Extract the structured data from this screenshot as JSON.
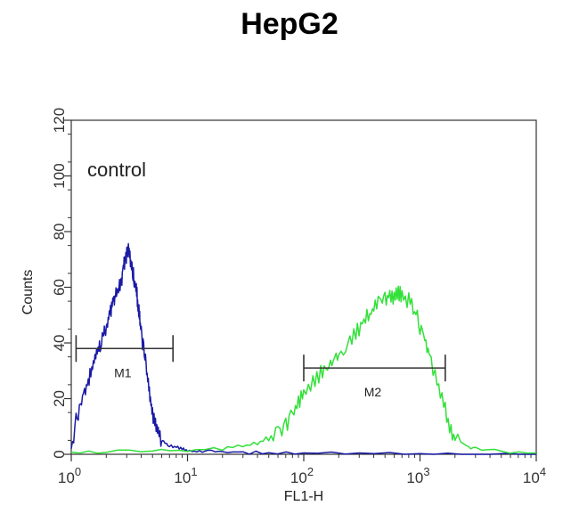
{
  "chart_data": {
    "type": "line",
    "title": "HepG2",
    "xlabel": "FL1-H",
    "ylabel": "Counts",
    "x_scale": "log",
    "xlim": [
      1,
      10000
    ],
    "ylim": [
      0,
      120
    ],
    "x_ticks": [
      {
        "value": 1,
        "base": "10",
        "exp": "0"
      },
      {
        "value": 10,
        "base": "10",
        "exp": "1"
      },
      {
        "value": 100,
        "base": "10",
        "exp": "2"
      },
      {
        "value": 1000,
        "base": "10",
        "exp": "3"
      },
      {
        "value": 10000,
        "base": "10",
        "exp": "4"
      }
    ],
    "y_ticks": [
      0,
      20,
      40,
      60,
      80,
      100,
      120
    ],
    "annotation": "control",
    "markers": [
      {
        "label": "M1",
        "x_start": 1.1,
        "x_end": 7.5,
        "y": 38
      },
      {
        "label": "M2",
        "x_start": 100,
        "x_end": 1650,
        "y": 31
      }
    ],
    "series": [
      {
        "color": "#1a1aa6",
        "x": [
          1.0,
          1.1,
          1.2,
          1.3,
          1.4,
          1.5,
          1.6,
          1.7,
          1.8,
          1.9,
          2.0,
          2.1,
          2.2,
          2.3,
          2.4,
          2.5,
          2.6,
          2.7,
          2.8,
          2.9,
          3.0,
          3.1,
          3.2,
          3.3,
          3.4,
          3.5,
          3.6,
          3.7,
          3.8,
          3.9,
          4.0,
          4.2,
          4.4,
          4.6,
          4.8,
          5.0,
          5.3,
          5.6,
          6.0,
          6.5,
          7.0,
          8.0,
          9.0,
          10.0,
          12,
          15,
          20,
          30,
          50,
          100,
          300,
          1000,
          3000,
          10000
        ],
        "y": [
          2,
          12,
          18,
          22,
          26,
          30,
          34,
          38,
          40,
          44,
          46,
          49,
          52,
          55,
          57,
          58,
          60,
          62,
          66,
          70,
          72,
          74,
          71,
          68,
          65,
          62,
          60,
          56,
          52,
          48,
          43,
          38,
          32,
          26,
          20,
          15,
          10,
          7,
          5,
          4,
          3,
          2.5,
          2,
          1.5,
          1,
          1,
          0.8,
          0.6,
          0.5,
          0.4,
          0.3,
          0.2,
          0.1,
          0
        ]
      },
      {
        "color": "#33e03a",
        "x": [
          1.0,
          2,
          5,
          10,
          20,
          30,
          40,
          50,
          60,
          70,
          80,
          90,
          100,
          120,
          140,
          160,
          180,
          200,
          240,
          280,
          320,
          360,
          400,
          450,
          500,
          550,
          600,
          650,
          700,
          800,
          900,
          1000,
          1100,
          1200,
          1400,
          1600,
          1800,
          2000,
          2500,
          3000,
          5000,
          10000
        ],
        "y": [
          0.5,
          1,
          1.5,
          1.5,
          2,
          3,
          4,
          6,
          8,
          10,
          14,
          18,
          22,
          26,
          29,
          32,
          34,
          36,
          40,
          44,
          47,
          50,
          52,
          55,
          56,
          56,
          57,
          58,
          57,
          55,
          52,
          46,
          42,
          36,
          26,
          18,
          10,
          6,
          3,
          2,
          1,
          0.5
        ]
      }
    ]
  }
}
